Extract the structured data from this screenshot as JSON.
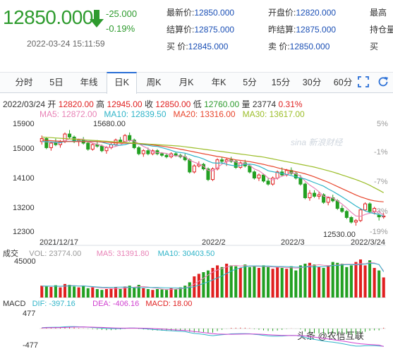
{
  "quote": {
    "price": "12850.000",
    "change": "-25.000",
    "change_pct": "-0.19%",
    "datetime": "2022-03-24 15:11:59",
    "trend_icon": "down-arrow-icon",
    "col1": [
      {
        "label": "最新价:",
        "value": "12850.000"
      },
      {
        "label": "结算价:",
        "value": "12875.000"
      },
      {
        "label": "买  价:",
        "value": "12845.000"
      }
    ],
    "col2": [
      {
        "label": "开盘价:",
        "value": "12820.000"
      },
      {
        "label": "昨结算:",
        "value": "12875.000"
      },
      {
        "label": "卖  价:",
        "value": "12850.000"
      }
    ],
    "col3": [
      {
        "label": "最高"
      },
      {
        "label": "持仓量"
      },
      {
        "label": "买"
      }
    ]
  },
  "tabs": [
    {
      "label": "分时",
      "active": false
    },
    {
      "label": "5日",
      "active": false
    },
    {
      "label": "年线",
      "active": false
    },
    {
      "label": "日K",
      "active": true
    },
    {
      "label": "周K",
      "active": false
    },
    {
      "label": "月K",
      "active": false
    },
    {
      "label": "年K",
      "active": false
    },
    {
      "label": "5分",
      "active": false
    },
    {
      "label": "15分",
      "active": false
    },
    {
      "label": "30分",
      "active": false
    },
    {
      "label": "60分",
      "active": false
    }
  ],
  "toolbar_icons": [
    "fullscreen-icon",
    "refresh-icon"
  ],
  "ohlc": {
    "date": "2022/03/24",
    "open_label": "开",
    "open": "12820.00",
    "high_label": "高",
    "high": "12945.00",
    "close_label": "收",
    "close": "12850.00",
    "low_label": "低",
    "low": "12760.00",
    "volume_label": "量",
    "volume": "23774",
    "change_pct": "0.31%"
  },
  "ma": [
    {
      "text": "MA5: 12872.00",
      "color": "#e882b6"
    },
    {
      "text": "MA10: 12839.50",
      "color": "#2fb4c8"
    },
    {
      "text": "MA20: 13316.00",
      "color": "#e8452c"
    },
    {
      "text": "MA30: 13617.00",
      "color": "#9cbe2a"
    }
  ],
  "colors": {
    "up": "#e02020",
    "down": "#22a022",
    "price_green": "#2e9b2e",
    "link_blue": "#1a4fb5",
    "active_tab": "#2a6fd6"
  },
  "watermark": "sina 新浪财经",
  "brandmark": "头条 @农信互联",
  "price_axis": {
    "labels": [
      "15900",
      "15000",
      "14100",
      "13200",
      "12300"
    ],
    "pct_labels": [
      "5%",
      "-1%",
      "-7%",
      "-13%",
      "-19%"
    ],
    "ylim": [
      12300,
      15900
    ]
  },
  "annotations": {
    "high": "15680.00",
    "low": "12530.00"
  },
  "x_labels": [
    "2021/12/17",
    "2022/2",
    "2022/3",
    "2022/3/24"
  ],
  "volume_panel": {
    "title": "成交",
    "vol": "VOL: 23774.00",
    "ma5": "MA5: 31391.80",
    "ma10": "MA10: 30403.50",
    "ymax_label": "45000"
  },
  "macd_panel": {
    "title": "MACD",
    "dif": "DIF: -397.16",
    "dea": "DEA: -406.16",
    "macd": "MACD: 18.00",
    "top_label": "477",
    "bottom_label": "-477"
  },
  "chart_data": {
    "type": "candlestick",
    "date_range": [
      "2021/12/17",
      "2022/3/24"
    ],
    "last_bar": {
      "date": "2022/03/24",
      "open": 12820,
      "high": 12945,
      "low": 12760,
      "close": 12850,
      "volume": 23774
    },
    "candles": [
      [
        15300,
        15500,
        15200,
        15400
      ],
      [
        15400,
        15450,
        15050,
        15100
      ],
      [
        15100,
        15300,
        15000,
        15250
      ],
      [
        15250,
        15400,
        15150,
        15200
      ],
      [
        15200,
        15350,
        15100,
        15300
      ],
      [
        15300,
        15600,
        15250,
        15550
      ],
      [
        15550,
        15680,
        15400,
        15450
      ],
      [
        15450,
        15500,
        15250,
        15300
      ],
      [
        15300,
        15400,
        15150,
        15350
      ],
      [
        15350,
        15450,
        15200,
        15250
      ],
      [
        15250,
        15300,
        15000,
        15050
      ],
      [
        15050,
        15250,
        15000,
        15200
      ],
      [
        15200,
        15350,
        15100,
        15150
      ],
      [
        15150,
        15200,
        14950,
        15000
      ],
      [
        15000,
        15150,
        14900,
        15100
      ],
      [
        15100,
        15250,
        15050,
        15200
      ],
      [
        15200,
        15400,
        15150,
        15350
      ],
      [
        15350,
        15450,
        15250,
        15300
      ],
      [
        15300,
        15550,
        15250,
        15500
      ],
      [
        15500,
        15600,
        15300,
        15350
      ],
      [
        15350,
        15400,
        15050,
        15100
      ],
      [
        15100,
        15150,
        14850,
        14900
      ],
      [
        14900,
        15050,
        14800,
        15000
      ],
      [
        15000,
        15100,
        14850,
        14900
      ],
      [
        14900,
        15050,
        14850,
        15000
      ],
      [
        15000,
        15050,
        14850,
        14900
      ],
      [
        14900,
        14950,
        14800,
        14850
      ],
      [
        14850,
        14900,
        14750,
        14800
      ],
      [
        14800,
        14950,
        14750,
        14900
      ],
      [
        14900,
        14950,
        14800,
        14850
      ],
      [
        14850,
        14900,
        14750,
        14800
      ],
      [
        14800,
        14900,
        14650,
        14700
      ],
      [
        14700,
        14750,
        14250,
        14300
      ],
      [
        14300,
        14550,
        14250,
        14500
      ],
      [
        14500,
        14650,
        14450,
        14550
      ],
      [
        14550,
        14600,
        14350,
        14400
      ],
      [
        14400,
        14450,
        14000,
        14050
      ],
      [
        14050,
        14450,
        14000,
        14400
      ],
      [
        14400,
        14750,
        14350,
        14700
      ],
      [
        14700,
        14800,
        14550,
        14650
      ],
      [
        14650,
        14750,
        14500,
        14700
      ],
      [
        14700,
        14800,
        14600,
        14650
      ],
      [
        14650,
        14700,
        14400,
        14450
      ],
      [
        14450,
        14650,
        14400,
        14600
      ],
      [
        14600,
        14700,
        14450,
        14500
      ],
      [
        14500,
        14550,
        14250,
        14300
      ],
      [
        14300,
        14350,
        14050,
        14100
      ],
      [
        14100,
        14250,
        14000,
        14200
      ],
      [
        14200,
        14250,
        13950,
        14000
      ],
      [
        14000,
        14100,
        13850,
        13900
      ],
      [
        13900,
        14150,
        13850,
        14100
      ],
      [
        14100,
        14350,
        14050,
        14300
      ],
      [
        14300,
        14450,
        14150,
        14200
      ],
      [
        14200,
        14400,
        14150,
        14350
      ],
      [
        14350,
        14450,
        14200,
        14250
      ],
      [
        14250,
        14300,
        14050,
        14100
      ],
      [
        14100,
        14200,
        13850,
        13900
      ],
      [
        13900,
        13950,
        13400,
        13450
      ],
      [
        13450,
        13700,
        13350,
        13600
      ],
      [
        13600,
        13700,
        13450,
        13500
      ],
      [
        13500,
        13650,
        13400,
        13550
      ],
      [
        13550,
        13600,
        13250,
        13300
      ],
      [
        13300,
        13500,
        13200,
        13450
      ],
      [
        13450,
        13550,
        13300,
        13350
      ],
      [
        13350,
        13400,
        13050,
        13100
      ],
      [
        13100,
        13200,
        12950,
        13000
      ],
      [
        13000,
        13050,
        12750,
        12800
      ],
      [
        12800,
        12850,
        12600,
        12650
      ],
      [
        12650,
        12750,
        12530,
        12700
      ],
      [
        12700,
        13100,
        12650,
        13050
      ],
      [
        13050,
        13300,
        13000,
        13250
      ],
      [
        13250,
        13300,
        12950,
        13000
      ],
      [
        13000,
        13150,
        12900,
        13100
      ],
      [
        12875,
        12900,
        12700,
        12820
      ],
      [
        12820,
        12945,
        12760,
        12850
      ]
    ],
    "ma_series": {
      "MA5": [
        15300,
        15290,
        15280,
        15270,
        15260,
        15330,
        15390,
        15390,
        15380,
        15380,
        15300,
        15250,
        15210,
        15170,
        15110,
        15110,
        15140,
        15190,
        15290,
        15340,
        15320,
        15230,
        15140,
        15070,
        14960,
        14940,
        14930,
        14910,
        14850,
        14830,
        14830,
        14810,
        14690,
        14620,
        14570,
        14490,
        14350,
        14340,
        14440,
        14560,
        14640,
        14680,
        14630,
        14580,
        14580,
        14520,
        14400,
        14340,
        14230,
        14100,
        14040,
        14100,
        14160,
        14210,
        14280,
        14240,
        14160,
        14000,
        13870,
        13770,
        13650,
        13500,
        13480,
        13440,
        13350,
        13240,
        13110,
        12970,
        12850,
        12840,
        12900,
        12940,
        12990,
        12990,
        12870
      ],
      "MA10": [
        15300,
        15300,
        15290,
        15280,
        15270,
        15300,
        15310,
        15320,
        15320,
        15310,
        15310,
        15310,
        15300,
        15280,
        15240,
        15200,
        15190,
        15180,
        15200,
        15240,
        15240,
        15220,
        15200,
        15180,
        15150,
        15140,
        15100,
        15060,
        15010,
        14960,
        14940,
        14920,
        14870,
        14820,
        14780,
        14730,
        14660,
        14600,
        14590,
        14600,
        14550,
        14520,
        14500,
        14510,
        14550,
        14560,
        14540,
        14490,
        14420,
        14340,
        14310,
        14280,
        14250,
        14220,
        14180,
        14140,
        14100,
        14070,
        14010,
        13950,
        13890,
        13830,
        13740,
        13660,
        13570,
        13480,
        13380,
        13280,
        13180,
        13090,
        13020,
        12960,
        12930,
        12900,
        12840
      ],
      "MA20": [
        15350,
        15340,
        15330,
        15320,
        15310,
        15300,
        15300,
        15300,
        15300,
        15300,
        15300,
        15300,
        15300,
        15290,
        15280,
        15270,
        15260,
        15250,
        15250,
        15250,
        15240,
        15230,
        15220,
        15210,
        15190,
        15170,
        15150,
        15130,
        15100,
        15080,
        15050,
        15020,
        14990,
        14960,
        14930,
        14900,
        14870,
        14840,
        14810,
        14790,
        14760,
        14730,
        14700,
        14680,
        14660,
        14640,
        14610,
        14580,
        14550,
        14510,
        14480,
        14440,
        14400,
        14370,
        14340,
        14310,
        14280,
        14240,
        14190,
        14140,
        14080,
        14020,
        13960,
        13890,
        13820,
        13750,
        13680,
        13610,
        13540,
        13480,
        13430,
        13380,
        13350,
        13330,
        13316
      ],
      "MA30": [
        15450,
        15440,
        15430,
        15420,
        15410,
        15400,
        15390,
        15380,
        15370,
        15360,
        15350,
        15340,
        15330,
        15320,
        15310,
        15300,
        15290,
        15280,
        15270,
        15260,
        15250,
        15240,
        15230,
        15220,
        15210,
        15200,
        15190,
        15180,
        15170,
        15160,
        15150,
        15130,
        15110,
        15090,
        15070,
        15050,
        15030,
        15010,
        14990,
        14970,
        14950,
        14930,
        14910,
        14890,
        14870,
        14850,
        14830,
        14810,
        14790,
        14760,
        14730,
        14700,
        14670,
        14640,
        14610,
        14580,
        14550,
        14520,
        14490,
        14460,
        14420,
        14380,
        14340,
        14300,
        14250,
        14200,
        14150,
        14100,
        14050,
        13990,
        13930,
        13860,
        13780,
        13700,
        13617
      ]
    },
    "volume": [
      14000,
      13000,
      12500,
      14500,
      12000,
      16000,
      15000,
      13000,
      12000,
      14000,
      11000,
      12000,
      10000,
      9000,
      10000,
      11000,
      12000,
      10000,
      13000,
      14000,
      12000,
      15000,
      11000,
      10000,
      9000,
      10000,
      9500,
      9000,
      11000,
      10000,
      12000,
      14000,
      18000,
      25000,
      28000,
      30000,
      32000,
      35000,
      38000,
      36000,
      40000,
      38000,
      37000,
      35000,
      39000,
      36000,
      37000,
      35000,
      38000,
      36000,
      34000,
      36000,
      35000,
      34000,
      37000,
      32000,
      38000,
      40000,
      41000,
      39000,
      36000,
      35000,
      38000,
      42000,
      41000,
      40000,
      36000,
      38000,
      42000,
      45000,
      38000,
      44000,
      35000,
      32000,
      23774
    ],
    "vol_ma": {
      "MA5": [
        13500,
        13400,
        13300,
        13300,
        13200,
        13600,
        14000,
        14100,
        13600,
        14000,
        13000,
        12400,
        11800,
        11200,
        11200,
        10400,
        10400,
        10400,
        11200,
        12000,
        12200,
        12800,
        13000,
        12400,
        11400,
        11000,
        10000,
        9500,
        9800,
        9900,
        10300,
        11200,
        13000,
        15800,
        19400,
        23000,
        26600,
        30000,
        32600,
        34200,
        36200,
        37400,
        38000,
        37200,
        37800,
        37000,
        36800,
        36800,
        37000,
        36400,
        36000,
        35800,
        35800,
        35400,
        35200,
        34800,
        35200,
        36200,
        37600,
        38000,
        38800,
        38200,
        37800,
        38000,
        38400,
        39200,
        39400,
        39400,
        39400,
        40200,
        39800,
        41400,
        40800,
        38800,
        31391.8
      ],
      "MA10": [
        13600,
        13500,
        13400,
        13400,
        13300,
        13500,
        13700,
        13800,
        13600,
        13700,
        13300,
        12900,
        12500,
        12200,
        12100,
        12000,
        12200,
        12300,
        12400,
        12200,
        11700,
        11600,
        11700,
        11800,
        11900,
        12000,
        11700,
        11400,
        11400,
        11400,
        11100,
        11300,
        11800,
        12800,
        14700,
        16700,
        18600,
        20800,
        23200,
        25500,
        28300,
        31200,
        33600,
        35200,
        36300,
        37400,
        37400,
        37400,
        37200,
        37300,
        37000,
        36700,
        36700,
        36600,
        36300,
        35900,
        35900,
        36200,
        36400,
        36200,
        36500,
        36500,
        37000,
        37800,
        37800,
        38600,
        38800,
        38800,
        38700,
        39200,
        39600,
        40400,
        40200,
        39100,
        30403.5
      ]
    },
    "macd": {
      "dif": [
        20,
        25,
        28,
        30,
        32,
        40,
        45,
        44,
        40,
        38,
        30,
        24,
        18,
        10,
        2,
        -2,
        -2,
        0,
        6,
        12,
        12,
        6,
        -2,
        -10,
        -20,
        -28,
        -36,
        -44,
        -50,
        -56,
        -62,
        -68,
        -90,
        -110,
        -120,
        -130,
        -150,
        -160,
        -150,
        -140,
        -130,
        -120,
        -118,
        -116,
        -115,
        -118,
        -130,
        -140,
        -152,
        -165,
        -172,
        -172,
        -168,
        -160,
        -155,
        -158,
        -168,
        -200,
        -225,
        -245,
        -262,
        -282,
        -295,
        -305,
        -322,
        -340,
        -360,
        -380,
        -396,
        -396,
        -388,
        -384,
        -386,
        -392,
        -397.16
      ],
      "dea": [
        15,
        17,
        19,
        21,
        23,
        26,
        30,
        33,
        34,
        35,
        34,
        32,
        29,
        25,
        20,
        16,
        12,
        10,
        9,
        10,
        10,
        10,
        8,
        4,
        0,
        -6,
        -12,
        -18,
        -25,
        -32,
        -38,
        -44,
        -54,
        -66,
        -78,
        -90,
        -102,
        -114,
        -122,
        -126,
        -128,
        -128,
        -127,
        -126,
        -124,
        -123,
        -124,
        -127,
        -132,
        -138,
        -145,
        -150,
        -154,
        -156,
        -157,
        -157,
        -159,
        -167,
        -179,
        -192,
        -206,
        -221,
        -236,
        -250,
        -264,
        -280,
        -296,
        -313,
        -329,
        -343,
        -352,
        -360,
        -366,
        -372,
        -406.16
      ],
      "hist": [
        10,
        16,
        18,
        18,
        18,
        28,
        30,
        22,
        12,
        6,
        -8,
        -16,
        -22,
        -30,
        -36,
        -36,
        -28,
        -20,
        -6,
        4,
        4,
        -8,
        -20,
        -28,
        -40,
        -44,
        -48,
        -52,
        -50,
        -48,
        -48,
        -48,
        -72,
        -88,
        -84,
        -80,
        -96,
        -92,
        -56,
        -28,
        -4,
        16,
        18,
        20,
        18,
        10,
        -12,
        -26,
        -40,
        -54,
        -54,
        -44,
        -28,
        -8,
        4,
        -2,
        -18,
        -66,
        -92,
        -106,
        -112,
        -122,
        -118,
        -110,
        -116,
        -120,
        -128,
        -134,
        -134,
        -106,
        -72,
        -48,
        -40,
        -40,
        18
      ]
    }
  }
}
